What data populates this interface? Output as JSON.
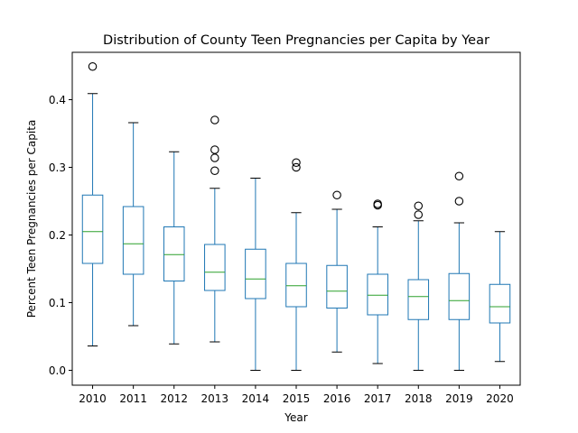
{
  "chart_data": {
    "type": "boxplot",
    "title": "Distribution of County Teen Pregnancies per Capita by Year",
    "xlabel": "Year",
    "ylabel": "Percent Teen Pregnancies per Capita",
    "ylim": [
      -0.022,
      0.47
    ],
    "yticks": [
      0.0,
      0.1,
      0.2,
      0.3,
      0.4
    ],
    "ytick_labels": [
      "0.0",
      "0.1",
      "0.2",
      "0.3",
      "0.4"
    ],
    "grid": false,
    "colors": {
      "box": "#1f77b4",
      "median": "#2ca02c",
      "whisker": "#1f77b4",
      "cap": "#000000",
      "outlier": "#000000"
    },
    "categories": [
      "2010",
      "2011",
      "2012",
      "2013",
      "2014",
      "2015",
      "2016",
      "2017",
      "2018",
      "2019",
      "2020"
    ],
    "boxes": [
      {
        "category": "2010",
        "whislo": 0.036,
        "q1": 0.158,
        "med": 0.205,
        "q3": 0.259,
        "whishi": 0.409,
        "fliers": [
          0.449
        ]
      },
      {
        "category": "2011",
        "whislo": 0.066,
        "q1": 0.142,
        "med": 0.187,
        "q3": 0.242,
        "whishi": 0.366,
        "fliers": []
      },
      {
        "category": "2012",
        "whislo": 0.039,
        "q1": 0.132,
        "med": 0.171,
        "q3": 0.212,
        "whishi": 0.323,
        "fliers": []
      },
      {
        "category": "2013",
        "whislo": 0.042,
        "q1": 0.118,
        "med": 0.145,
        "q3": 0.186,
        "whishi": 0.269,
        "fliers": [
          0.295,
          0.314,
          0.326,
          0.37
        ]
      },
      {
        "category": "2014",
        "whislo": 0.0,
        "q1": 0.106,
        "med": 0.135,
        "q3": 0.179,
        "whishi": 0.284,
        "fliers": []
      },
      {
        "category": "2015",
        "whislo": 0.0,
        "q1": 0.094,
        "med": 0.125,
        "q3": 0.158,
        "whishi": 0.233,
        "fliers": [
          0.3,
          0.307
        ]
      },
      {
        "category": "2016",
        "whislo": 0.027,
        "q1": 0.092,
        "med": 0.117,
        "q3": 0.155,
        "whishi": 0.238,
        "fliers": [
          0.259
        ]
      },
      {
        "category": "2017",
        "whislo": 0.01,
        "q1": 0.082,
        "med": 0.111,
        "q3": 0.142,
        "whishi": 0.212,
        "fliers": [
          0.244,
          0.246
        ]
      },
      {
        "category": "2018",
        "whislo": 0.0,
        "q1": 0.075,
        "med": 0.109,
        "q3": 0.134,
        "whishi": 0.221,
        "fliers": [
          0.23,
          0.243
        ]
      },
      {
        "category": "2019",
        "whislo": 0.0,
        "q1": 0.075,
        "med": 0.103,
        "q3": 0.143,
        "whishi": 0.218,
        "fliers": [
          0.25,
          0.287
        ]
      },
      {
        "category": "2020",
        "whislo": 0.013,
        "q1": 0.07,
        "med": 0.094,
        "q3": 0.127,
        "whishi": 0.205,
        "fliers": []
      }
    ]
  }
}
